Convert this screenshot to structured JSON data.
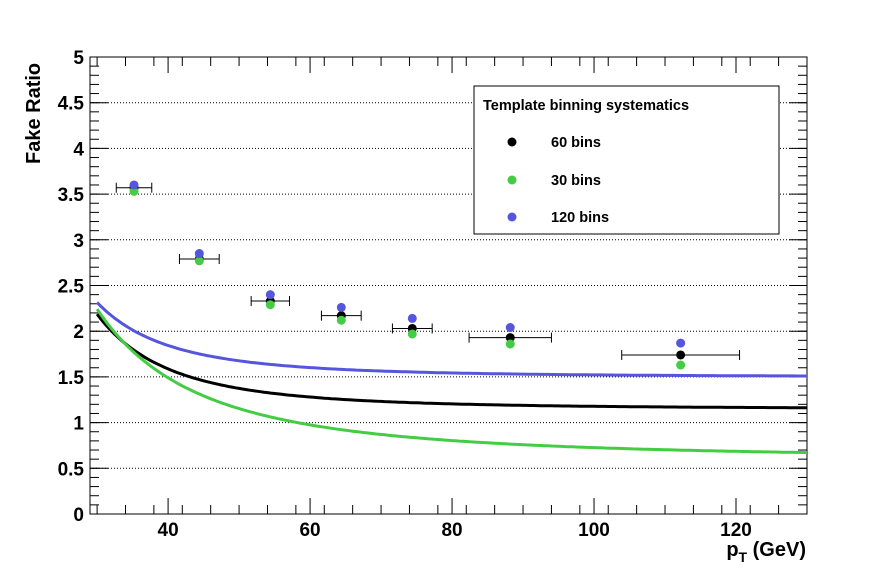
{
  "chart_data": {
    "type": "scatter",
    "xlabel": "p",
    "xlabel_sub": "T",
    "xlabel_suffix": " (GeV)",
    "ylabel": "Fake Ratio",
    "xlim": [
      29,
      130
    ],
    "ylim": [
      0,
      5
    ],
    "x_ticks": [
      40,
      60,
      80,
      100,
      120
    ],
    "y_ticks": [
      0,
      0.5,
      1,
      1.5,
      2,
      2.5,
      3,
      3.5,
      4,
      4.5,
      5
    ],
    "y_tick_labels": [
      "0",
      "0.5",
      "1",
      "1.5",
      "2",
      "2.5",
      "3",
      "3.5",
      "4",
      "4.5",
      "5"
    ],
    "grid": "horizontal",
    "legend": {
      "title": "Template binning systematics",
      "placement": "top-right"
    },
    "series": [
      {
        "name": "60 bins",
        "color": "#000000",
        "points": [
          {
            "x": 35.2,
            "y": 3.57,
            "xerr": 2.5
          },
          {
            "x": 44.4,
            "y": 2.79,
            "xerr": 2.8
          },
          {
            "x": 54.4,
            "y": 2.33,
            "xerr": 2.7
          },
          {
            "x": 64.4,
            "y": 2.17,
            "xerr": 2.8
          },
          {
            "x": 74.4,
            "y": 2.03,
            "xerr": 2.8
          },
          {
            "x": 88.2,
            "y": 1.93,
            "xerr": 5.8
          },
          {
            "x": 112.2,
            "y": 1.74,
            "xerr": 8.3
          }
        ],
        "fit": {
          "a": 1.15,
          "b": 28000,
          "c": 3.0
        }
      },
      {
        "name": "30 bins",
        "color": "#44cc44",
        "points": [
          {
            "x": 35.2,
            "y": 3.53
          },
          {
            "x": 44.4,
            "y": 2.77
          },
          {
            "x": 54.4,
            "y": 2.29
          },
          {
            "x": 64.4,
            "y": 2.12
          },
          {
            "x": 74.4,
            "y": 1.97
          },
          {
            "x": 88.2,
            "y": 1.86
          },
          {
            "x": 112.2,
            "y": 1.63
          }
        ],
        "fit": {
          "a": 0.6,
          "b": 2300,
          "c": 2.13
        }
      },
      {
        "name": "120 bins",
        "color": "#5555dd",
        "points": [
          {
            "x": 35.2,
            "y": 3.6
          },
          {
            "x": 44.4,
            "y": 2.85
          },
          {
            "x": 54.4,
            "y": 2.4
          },
          {
            "x": 64.4,
            "y": 2.26
          },
          {
            "x": 74.4,
            "y": 2.14
          },
          {
            "x": 88.2,
            "y": 2.04
          },
          {
            "x": 112.2,
            "y": 1.87
          }
        ],
        "fit": {
          "a": 1.5,
          "b": 22000,
          "c": 3.0
        }
      }
    ]
  }
}
